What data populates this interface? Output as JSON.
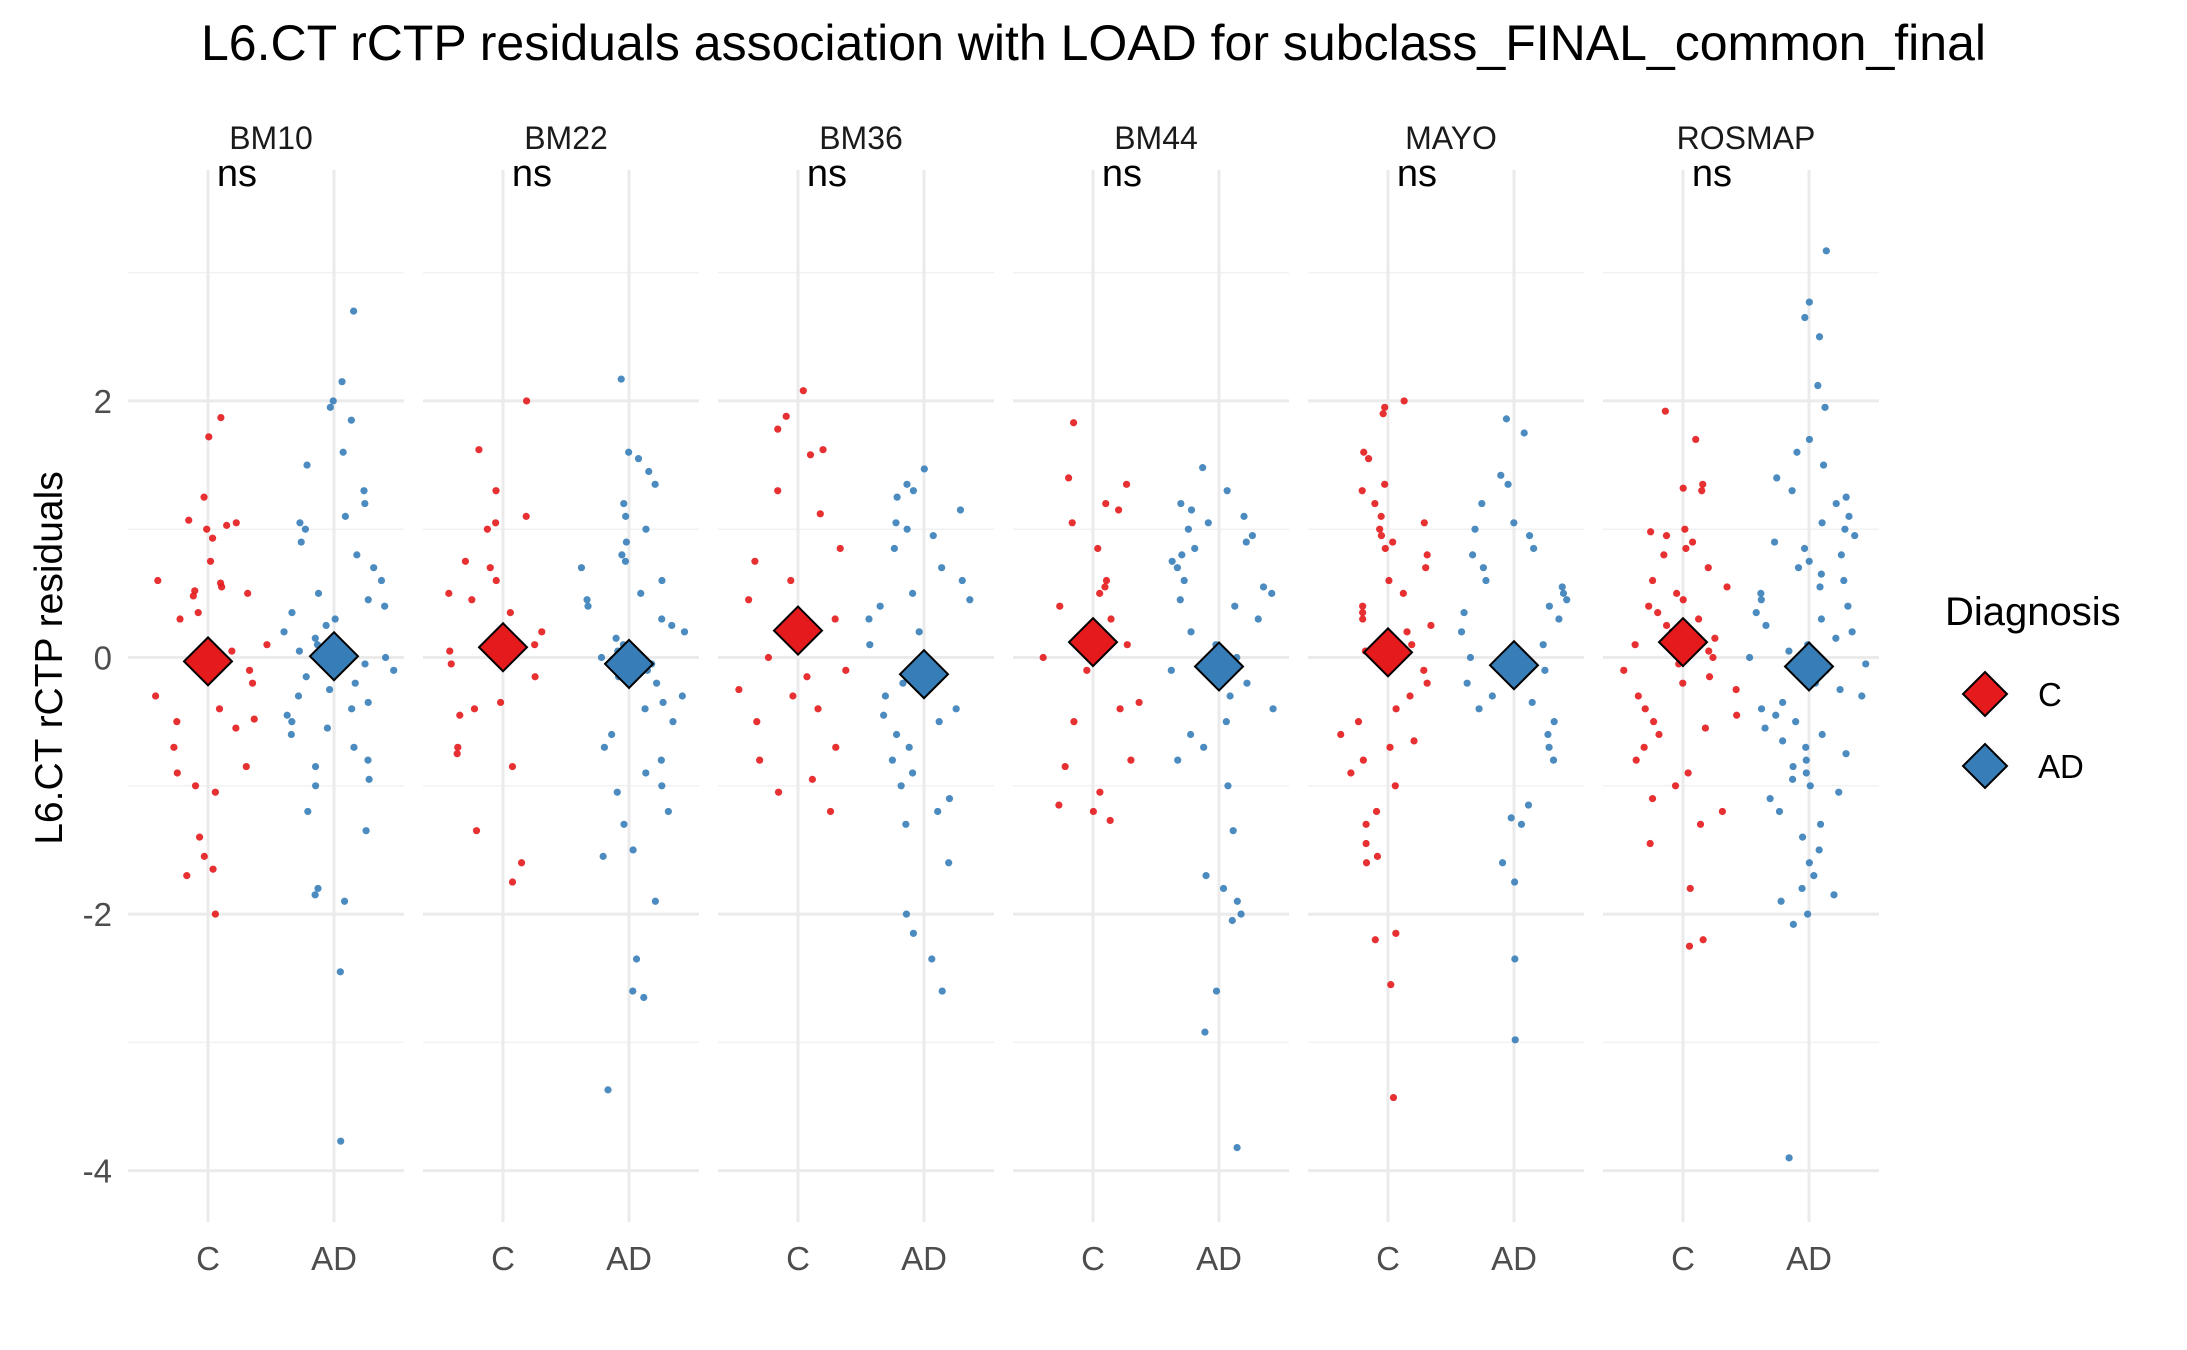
{
  "chart_data": {
    "type": "scatter",
    "title": "L6.CT rCTP residuals association with LOAD for subclass_FINAL_common_final",
    "xlabel": "",
    "ylabel": "L6.CT rCTP residuals",
    "categories": [
      "C",
      "AD"
    ],
    "ylim": [
      -4.4,
      3.8
    ],
    "y_ticks": [
      "-4",
      "-2",
      "0",
      "2"
    ],
    "grid": true,
    "legend_position": "right",
    "legend": {
      "title": "Diagnosis",
      "entries": [
        {
          "label": "C",
          "color": "#e41a1c"
        },
        {
          "label": "AD",
          "color": "#377eb8"
        }
      ]
    },
    "series": [
      {
        "name": "C",
        "color": "#e41a1c"
      },
      {
        "name": "AD",
        "color": "#377eb8"
      }
    ],
    "panels": [
      {
        "name": "BM10",
        "significance": "ns",
        "means": [
          -0.03,
          0.01
        ],
        "points": {
          "C": [
            1.87,
            1.72,
            1.25,
            1.07,
            1.05,
            1.03,
            1.0,
            0.93,
            0.75,
            0.6,
            0.58,
            0.55,
            0.52,
            0.5,
            0.48,
            0.35,
            0.3,
            0.1,
            0.05,
            -0.1,
            -0.2,
            -0.3,
            -0.4,
            -0.48,
            -0.5,
            -0.55,
            -0.7,
            -0.85,
            -0.9,
            -1.0,
            -1.05,
            -1.4,
            -1.55,
            -1.65,
            -1.7,
            -2.0
          ],
          "AD": [
            2.7,
            2.15,
            2.0,
            1.95,
            1.85,
            1.6,
            1.5,
            1.3,
            1.2,
            1.1,
            1.05,
            1.0,
            0.9,
            0.8,
            0.7,
            0.6,
            0.5,
            0.45,
            0.4,
            0.35,
            0.3,
            0.25,
            0.2,
            0.15,
            0.1,
            0.05,
            0.0,
            -0.05,
            -0.1,
            -0.15,
            -0.2,
            -0.25,
            -0.3,
            -0.35,
            -0.4,
            -0.45,
            -0.5,
            -0.55,
            -0.6,
            -0.7,
            -0.8,
            -0.85,
            -0.95,
            -1.0,
            -1.2,
            -1.35,
            -1.8,
            -1.85,
            -1.9,
            -2.45,
            -3.77
          ]
        }
      },
      {
        "name": "BM22",
        "significance": "ns",
        "means": [
          0.08,
          -0.05
        ],
        "points": {
          "C": [
            2.0,
            1.62,
            1.3,
            1.1,
            1.05,
            1.0,
            0.75,
            0.7,
            0.6,
            0.5,
            0.45,
            0.35,
            0.2,
            0.1,
            0.05,
            -0.05,
            -0.15,
            -0.35,
            -0.4,
            -0.45,
            -0.7,
            -0.75,
            -0.85,
            -1.35,
            -1.6,
            -1.75
          ],
          "AD": [
            2.17,
            1.6,
            1.55,
            1.45,
            1.35,
            1.2,
            1.1,
            1.0,
            0.9,
            0.8,
            0.75,
            0.7,
            0.6,
            0.5,
            0.45,
            0.4,
            0.3,
            0.25,
            0.2,
            0.15,
            0.1,
            0.05,
            0.0,
            -0.05,
            -0.1,
            -0.15,
            -0.2,
            -0.3,
            -0.35,
            -0.4,
            -0.5,
            -0.6,
            -0.7,
            -0.8,
            -0.9,
            -1.0,
            -1.05,
            -1.2,
            -1.3,
            -1.5,
            -1.55,
            -1.9,
            -2.35,
            -2.6,
            -2.65,
            -3.37
          ]
        }
      },
      {
        "name": "BM36",
        "significance": "ns",
        "means": [
          0.21,
          -0.13
        ],
        "points": {
          "C": [
            2.08,
            1.88,
            1.78,
            1.62,
            1.58,
            1.3,
            1.12,
            0.85,
            0.75,
            0.6,
            0.45,
            0.3,
            0.2,
            0.1,
            0.0,
            -0.1,
            -0.15,
            -0.25,
            -0.3,
            -0.4,
            -0.5,
            -0.7,
            -0.8,
            -0.95,
            -1.05,
            -1.2
          ],
          "AD": [
            1.47,
            1.35,
            1.3,
            1.25,
            1.15,
            1.05,
            1.0,
            0.95,
            0.85,
            0.7,
            0.6,
            0.5,
            0.45,
            0.4,
            0.3,
            0.2,
            0.1,
            0.0,
            -0.1,
            -0.2,
            -0.3,
            -0.4,
            -0.45,
            -0.5,
            -0.6,
            -0.7,
            -0.8,
            -0.9,
            -1.0,
            -1.1,
            -1.2,
            -1.3,
            -1.6,
            -2.0,
            -2.15,
            -2.35,
            -2.6
          ]
        }
      },
      {
        "name": "BM44",
        "significance": "ns",
        "means": [
          0.12,
          -0.07
        ],
        "points": {
          "C": [
            1.83,
            1.4,
            1.35,
            1.2,
            1.15,
            1.05,
            0.85,
            0.6,
            0.55,
            0.5,
            0.4,
            0.3,
            0.2,
            0.1,
            0.0,
            -0.1,
            -0.35,
            -0.4,
            -0.5,
            -0.8,
            -0.85,
            -1.05,
            -1.15,
            -1.2,
            -1.27
          ],
          "AD": [
            1.48,
            1.3,
            1.2,
            1.15,
            1.1,
            1.05,
            1.0,
            0.95,
            0.9,
            0.85,
            0.8,
            0.75,
            0.7,
            0.6,
            0.55,
            0.5,
            0.45,
            0.4,
            0.3,
            0.2,
            0.1,
            0.0,
            -0.1,
            -0.2,
            -0.3,
            -0.4,
            -0.5,
            -0.6,
            -0.7,
            -0.8,
            -1.0,
            -1.35,
            -1.7,
            -1.8,
            -1.9,
            -2.0,
            -2.05,
            -2.6,
            -2.92,
            -3.82
          ]
        }
      },
      {
        "name": "MAYO",
        "significance": "ns",
        "means": [
          0.04,
          -0.06
        ],
        "points": {
          "C": [
            2.0,
            1.95,
            1.9,
            1.6,
            1.55,
            1.35,
            1.3,
            1.2,
            1.1,
            1.05,
            1.0,
            0.95,
            0.9,
            0.85,
            0.8,
            0.7,
            0.6,
            0.5,
            0.4,
            0.35,
            0.3,
            0.25,
            0.2,
            0.1,
            0.05,
            0.0,
            -0.05,
            -0.1,
            -0.2,
            -0.3,
            -0.4,
            -0.5,
            -0.6,
            -0.65,
            -0.7,
            -0.8,
            -0.9,
            -1.0,
            -1.2,
            -1.3,
            -1.45,
            -1.55,
            -1.6,
            -2.15,
            -2.2,
            -2.55,
            -3.43
          ],
          "AD": [
            1.86,
            1.75,
            1.42,
            1.35,
            1.2,
            1.05,
            1.0,
            0.95,
            0.85,
            0.8,
            0.7,
            0.6,
            0.55,
            0.5,
            0.45,
            0.4,
            0.35,
            0.3,
            0.2,
            0.1,
            0.0,
            -0.05,
            -0.1,
            -0.2,
            -0.3,
            -0.35,
            -0.4,
            -0.5,
            -0.6,
            -0.7,
            -0.8,
            -1.15,
            -1.25,
            -1.3,
            -1.6,
            -1.75,
            -2.35,
            -2.98
          ]
        }
      },
      {
        "name": "ROSMAP",
        "significance": "ns",
        "means": [
          0.12,
          -0.07
        ],
        "points": {
          "C": [
            1.92,
            1.7,
            1.35,
            1.32,
            1.3,
            1.0,
            0.98,
            0.95,
            0.9,
            0.85,
            0.8,
            0.7,
            0.6,
            0.55,
            0.5,
            0.45,
            0.4,
            0.35,
            0.3,
            0.25,
            0.2,
            0.15,
            0.1,
            0.05,
            0.0,
            -0.05,
            -0.1,
            -0.15,
            -0.2,
            -0.25,
            -0.3,
            -0.4,
            -0.45,
            -0.5,
            -0.55,
            -0.6,
            -0.7,
            -0.8,
            -0.9,
            -1.0,
            -1.1,
            -1.2,
            -1.3,
            -1.45,
            -1.8,
            -2.2,
            -2.25
          ],
          "AD": [
            3.17,
            2.77,
            2.65,
            2.5,
            2.12,
            1.95,
            1.7,
            1.6,
            1.5,
            1.4,
            1.3,
            1.25,
            1.2,
            1.1,
            1.05,
            1.0,
            0.95,
            0.9,
            0.85,
            0.8,
            0.75,
            0.7,
            0.65,
            0.6,
            0.55,
            0.5,
            0.45,
            0.4,
            0.35,
            0.3,
            0.25,
            0.2,
            0.15,
            0.1,
            0.05,
            0.0,
            -0.05,
            -0.1,
            -0.15,
            -0.2,
            -0.25,
            -0.3,
            -0.35,
            -0.4,
            -0.45,
            -0.5,
            -0.55,
            -0.6,
            -0.65,
            -0.7,
            -0.75,
            -0.8,
            -0.85,
            -0.9,
            -0.95,
            -1.0,
            -1.05,
            -1.1,
            -1.2,
            -1.3,
            -1.4,
            -1.5,
            -1.6,
            -1.7,
            -1.8,
            -1.85,
            -1.9,
            -2.0,
            -2.08,
            -3.9
          ]
        }
      }
    ]
  }
}
